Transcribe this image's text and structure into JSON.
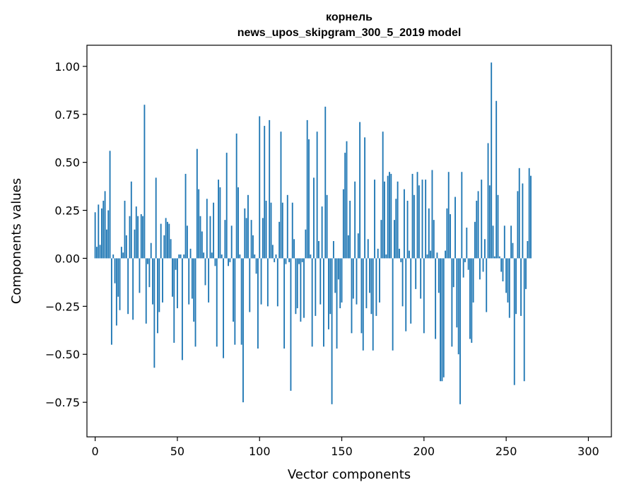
{
  "chart_data": {
    "type": "bar",
    "title_word": "корнель",
    "title_model": "news_upos_skipgram_300_5_2019 model",
    "xlabel": "Vector components",
    "ylabel": "Components values",
    "xlim": [
      -5,
      314
    ],
    "ylim": [
      -0.93,
      1.11
    ],
    "xticks": [
      0,
      50,
      100,
      150,
      200,
      250,
      300
    ],
    "xtick_labels": [
      "0",
      "50",
      "100",
      "150",
      "200",
      "250",
      "300"
    ],
    "yticks": [
      -0.75,
      -0.5,
      -0.25,
      0.0,
      0.25,
      0.5,
      0.75,
      1.0
    ],
    "ytick_labels": [
      "−0.75",
      "−0.50",
      "−0.25",
      "0.00",
      "0.25",
      "0.50",
      "0.75",
      "1.00"
    ],
    "bar_color": "#1f77b4",
    "values": [
      0.24,
      0.06,
      0.28,
      0.07,
      0.26,
      0.3,
      0.35,
      0.15,
      0.25,
      0.56,
      -0.45,
      0.02,
      -0.13,
      -0.35,
      -0.2,
      -0.27,
      0.06,
      0.03,
      0.3,
      0.12,
      -0.29,
      0.22,
      0.4,
      -0.32,
      0.15,
      0.27,
      0.22,
      -0.18,
      0.23,
      0.22,
      0.8,
      -0.34,
      -0.03,
      -0.15,
      0.08,
      -0.24,
      -0.57,
      0.42,
      -0.39,
      -0.28,
      0.18,
      -0.23,
      0.12,
      0.21,
      0.19,
      0.18,
      0.1,
      -0.2,
      -0.44,
      -0.06,
      -0.26,
      0.02,
      0.02,
      -0.53,
      0.02,
      0.44,
      0.17,
      -0.24,
      0.05,
      -0.21,
      -0.33,
      -0.46,
      0.57,
      0.36,
      0.22,
      0.14,
      0.03,
      -0.14,
      0.31,
      -0.23,
      0.22,
      0.03,
      0.29,
      -0.04,
      -0.46,
      0.41,
      0.37,
      0.02,
      -0.52,
      0.2,
      0.55,
      -0.04,
      -0.02,
      0.17,
      -0.33,
      -0.45,
      0.65,
      0.37,
      0.02,
      -0.45,
      -0.75,
      0.26,
      0.21,
      0.33,
      -0.28,
      0.2,
      0.12,
      0.02,
      -0.08,
      -0.47,
      0.74,
      -0.24,
      0.21,
      0.69,
      0.3,
      -0.25,
      0.72,
      0.29,
      0.07,
      -0.02,
      0.02,
      -0.25,
      0.19,
      0.66,
      0.29,
      -0.47,
      -0.03,
      0.33,
      -0.02,
      -0.69,
      0.29,
      0.1,
      -0.29,
      -0.26,
      -0.03,
      -0.33,
      -0.02,
      -0.31,
      0.15,
      0.72,
      0.62,
      0.02,
      -0.46,
      0.42,
      -0.3,
      0.66,
      0.09,
      -0.24,
      0.27,
      -0.46,
      0.79,
      0.33,
      -0.37,
      -0.29,
      -0.76,
      0.09,
      -0.18,
      -0.47,
      -0.11,
      -0.26,
      -0.23,
      0.36,
      0.55,
      0.61,
      0.12,
      0.3,
      -0.39,
      -0.21,
      0.4,
      -0.24,
      0.13,
      0.71,
      -0.39,
      -0.48,
      0.63,
      -0.26,
      0.1,
      -0.18,
      -0.29,
      -0.48,
      0.41,
      -0.3,
      0.05,
      -0.23,
      0.2,
      0.66,
      0.4,
      0.02,
      0.43,
      0.45,
      0.44,
      -0.48,
      0.2,
      0.31,
      0.4,
      0.05,
      -0.02,
      -0.25,
      0.36,
      -0.38,
      0.3,
      0.04,
      -0.34,
      0.44,
      0.33,
      -0.16,
      0.45,
      0.38,
      -0.21,
      0.41,
      -0.39,
      0.41,
      0.02,
      0.26,
      0.04,
      0.46,
      0.2,
      -0.42,
      0.03,
      -0.18,
      -0.64,
      -0.64,
      -0.62,
      0.04,
      0.26,
      0.45,
      0.23,
      -0.46,
      -0.15,
      0.32,
      -0.36,
      -0.5,
      -0.76,
      0.45,
      -0.1,
      -0.02,
      0.16,
      -0.06,
      -0.42,
      -0.44,
      -0.23,
      0.19,
      0.3,
      0.35,
      -0.11,
      0.41,
      -0.07,
      0.1,
      -0.28,
      0.6,
      0.38,
      1.02,
      0.17,
      0.01,
      0.82,
      0.33,
      0.01,
      -0.07,
      -0.12,
      0.17,
      -0.18,
      -0.23,
      -0.31,
      0.17,
      0.08,
      -0.66,
      -0.29,
      0.35,
      0.47,
      -0.3,
      0.39,
      -0.64,
      -0.16,
      0.09,
      0.47,
      0.43
    ]
  }
}
